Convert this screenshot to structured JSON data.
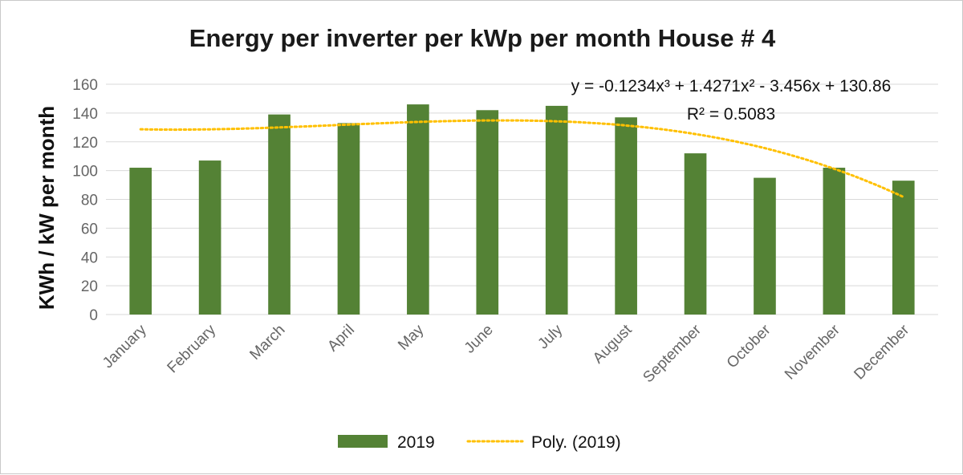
{
  "chart_data": {
    "type": "bar",
    "title": "Energy per inverter per kWp per month  House # 4",
    "xlabel": "",
    "ylabel": "KWh / kW per month",
    "ylim": [
      0,
      160
    ],
    "yticks": [
      0,
      20,
      40,
      60,
      80,
      100,
      120,
      140,
      160
    ],
    "grid": true,
    "categories": [
      "January",
      "February",
      "March",
      "April",
      "May",
      "June",
      "July",
      "August",
      "September",
      "October",
      "November",
      "December"
    ],
    "series": [
      {
        "name": "2019",
        "color": "#548235",
        "values": [
          102,
          107,
          139,
          133,
          146,
          142,
          145,
          137,
          112,
          95,
          102,
          93
        ]
      }
    ],
    "trendline": {
      "name": "Poly. (2019)",
      "color": "#FFC000",
      "style": "dotted",
      "type": "polynomial",
      "order": 3,
      "coefficients": [
        -0.1234,
        1.4271,
        -3.456,
        130.86
      ],
      "equation_line1": "y = -0.1234x³ + 1.4271x² - 3.456x + 130.86",
      "equation_line2": "R² = 0.5083"
    },
    "legend": {
      "position": "bottom",
      "entries": [
        "2019",
        "Poly. (2019)"
      ]
    }
  }
}
